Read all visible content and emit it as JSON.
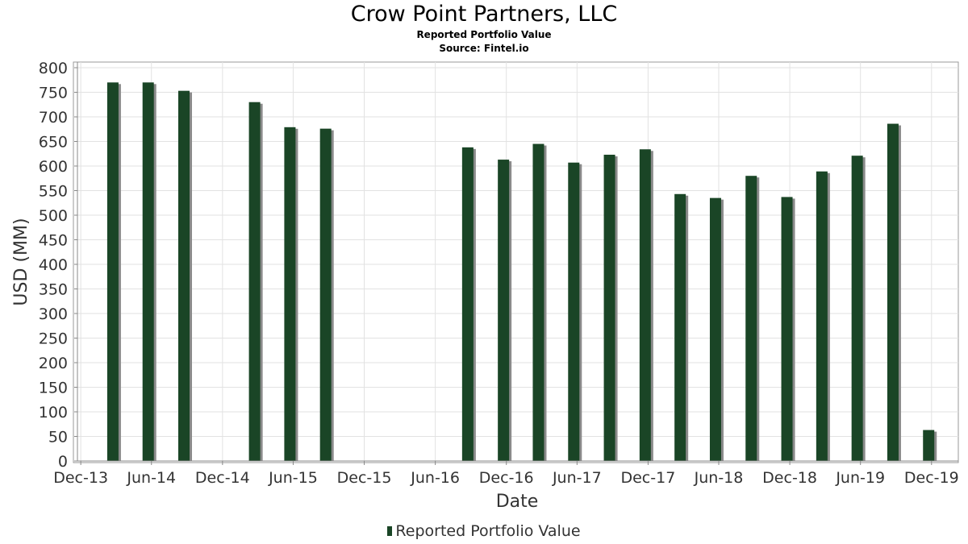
{
  "chart_data": {
    "type": "bar",
    "title": "Crow Point Partners, LLC",
    "subtitle": "Reported Portfolio Value",
    "source": "Source: Fintel.io",
    "xlabel": "Date",
    "ylabel": "USD (MM)",
    "ylim": [
      0,
      800
    ],
    "yticks": [
      0,
      50,
      100,
      150,
      200,
      250,
      300,
      350,
      400,
      450,
      500,
      550,
      600,
      650,
      700,
      750,
      800
    ],
    "xticks": [
      {
        "label": "Dec-13",
        "date": "2013-12-01"
      },
      {
        "label": "Jun-14",
        "date": "2014-06-01"
      },
      {
        "label": "Dec-14",
        "date": "2014-12-01"
      },
      {
        "label": "Jun-15",
        "date": "2015-06-01"
      },
      {
        "label": "Dec-15",
        "date": "2015-12-01"
      },
      {
        "label": "Jun-16",
        "date": "2016-06-01"
      },
      {
        "label": "Dec-16",
        "date": "2016-12-01"
      },
      {
        "label": "Jun-17",
        "date": "2017-06-01"
      },
      {
        "label": "Dec-17",
        "date": "2017-12-01"
      },
      {
        "label": "Jun-18",
        "date": "2018-06-01"
      },
      {
        "label": "Dec-18",
        "date": "2018-12-01"
      },
      {
        "label": "Jun-19",
        "date": "2019-06-01"
      },
      {
        "label": "Dec-19",
        "date": "2019-12-01"
      }
    ],
    "xlim": [
      "2013-11-12",
      "2020-02-08"
    ],
    "grid": true,
    "legend_position": "bottom-center",
    "series": [
      {
        "name": "Reported Portfolio Value",
        "color": "#1a4526",
        "points": [
          {
            "x": "2014-03-31",
            "y": 770
          },
          {
            "x": "2014-06-30",
            "y": 770
          },
          {
            "x": "2014-09-30",
            "y": 753
          },
          {
            "x": "2015-03-31",
            "y": 730
          },
          {
            "x": "2015-06-30",
            "y": 679
          },
          {
            "x": "2015-09-30",
            "y": 676
          },
          {
            "x": "2016-09-30",
            "y": 638
          },
          {
            "x": "2016-12-31",
            "y": 613
          },
          {
            "x": "2017-03-31",
            "y": 645
          },
          {
            "x": "2017-06-30",
            "y": 607
          },
          {
            "x": "2017-09-30",
            "y": 623
          },
          {
            "x": "2017-12-31",
            "y": 634
          },
          {
            "x": "2018-03-31",
            "y": 543
          },
          {
            "x": "2018-06-30",
            "y": 535
          },
          {
            "x": "2018-09-30",
            "y": 580
          },
          {
            "x": "2018-12-31",
            "y": 537
          },
          {
            "x": "2019-03-31",
            "y": 589
          },
          {
            "x": "2019-06-30",
            "y": 621
          },
          {
            "x": "2019-09-30",
            "y": 686
          },
          {
            "x": "2019-12-31",
            "y": 63
          }
        ]
      }
    ]
  }
}
